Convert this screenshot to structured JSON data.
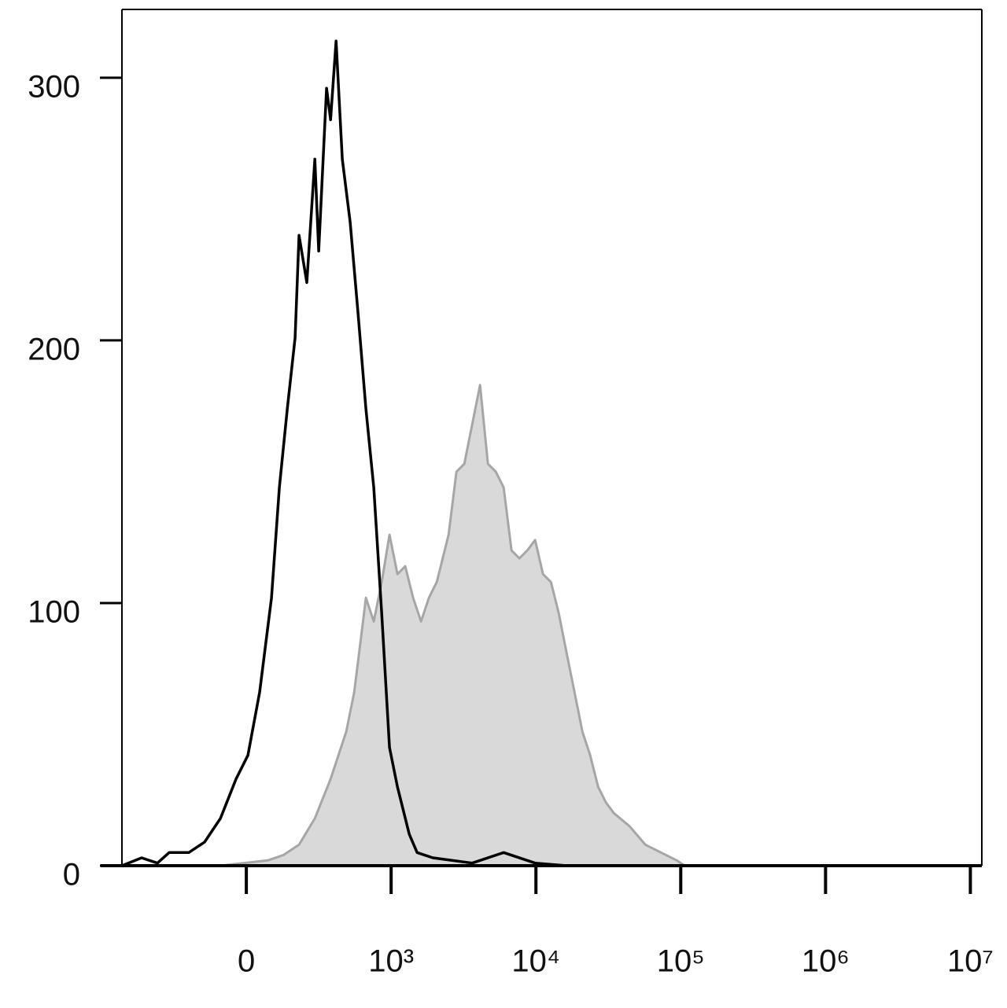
{
  "chart_data": {
    "type": "line",
    "xscale": "biexponential",
    "xlim": [
      -859,
      12000000
    ],
    "xticks": [
      0,
      {
        "value": 1000,
        "label": "10³"
      },
      {
        "value": 10000,
        "label": "10⁴"
      },
      {
        "value": 100000,
        "label": "10⁵"
      },
      {
        "value": 1000000,
        "label": "10⁶"
      },
      {
        "value": 10000000,
        "label": "10⁷"
      }
    ],
    "ylim": [
      0,
      326
    ],
    "yticks": [
      0,
      100,
      200,
      300
    ],
    "series": [
      {
        "color": "#a6a6a6",
        "fill": "#d9d9d9",
        "x": [
          -179,
          147,
          255,
          364,
          473,
          582,
          690,
          745,
          799,
          826,
          880,
          935,
          989,
          1105,
          1252,
          1419,
          1609,
          1824,
          2067,
          2493,
          2826,
          3203,
          3629,
          4113,
          4662,
          5283,
          5985,
          6786,
          7690,
          8715,
          9877,
          11190,
          12690,
          14380,
          16290,
          18470,
          20930,
          23710,
          26880,
          30460,
          34510,
          44330,
          56930,
          73120,
          93930,
          106500
        ],
        "values": [
          0,
          2,
          4,
          8,
          18,
          33,
          51,
          66,
          90,
          102,
          93,
          108,
          126,
          111,
          114,
          102,
          93,
          102,
          108,
          126,
          150,
          153,
          168,
          183,
          153,
          150,
          144,
          120,
          117,
          120,
          124,
          111,
          108,
          96,
          81,
          66,
          51,
          42,
          30,
          24,
          20,
          15,
          8,
          5,
          2,
          0
        ]
      },
      {
        "color": "#000000",
        "x": [
          -859,
          -723,
          -614,
          -533,
          -397,
          -288,
          -179,
          -71,
          11,
          92,
          174,
          228,
          283,
          337,
          364,
          418,
          473,
          500,
          554,
          582,
          620,
          663,
          717,
          772,
          826,
          880,
          935,
          989,
          1105,
          1334,
          1511,
          1941,
          3629,
          5985,
          9877,
          16290,
          12000000
        ],
        "values": [
          0,
          3,
          1,
          5,
          5,
          9,
          18,
          33,
          42,
          66,
          102,
          144,
          174,
          201,
          240,
          222,
          269,
          234,
          296,
          284,
          314,
          269,
          245,
          210,
          174,
          144,
          96,
          45,
          30,
          12,
          5,
          3,
          1,
          5,
          1,
          0,
          0
        ]
      }
    ]
  }
}
